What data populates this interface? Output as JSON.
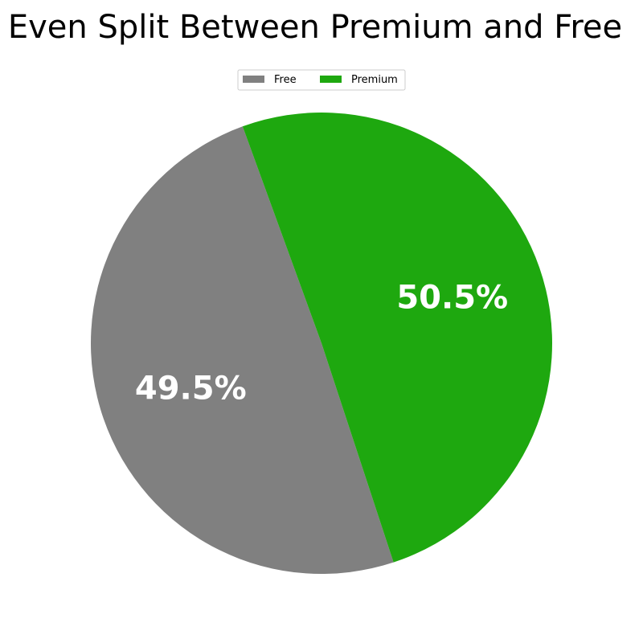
{
  "chart_data": {
    "type": "pie",
    "title": "Even Split Between Premium and Free",
    "legend_position": "top-center",
    "slices": [
      {
        "label": "Free",
        "value": 49.5,
        "display": "49.5%",
        "color": "#808080"
      },
      {
        "label": "Premium",
        "value": 50.5,
        "display": "50.5%",
        "color": "#1ea80f"
      }
    ]
  }
}
